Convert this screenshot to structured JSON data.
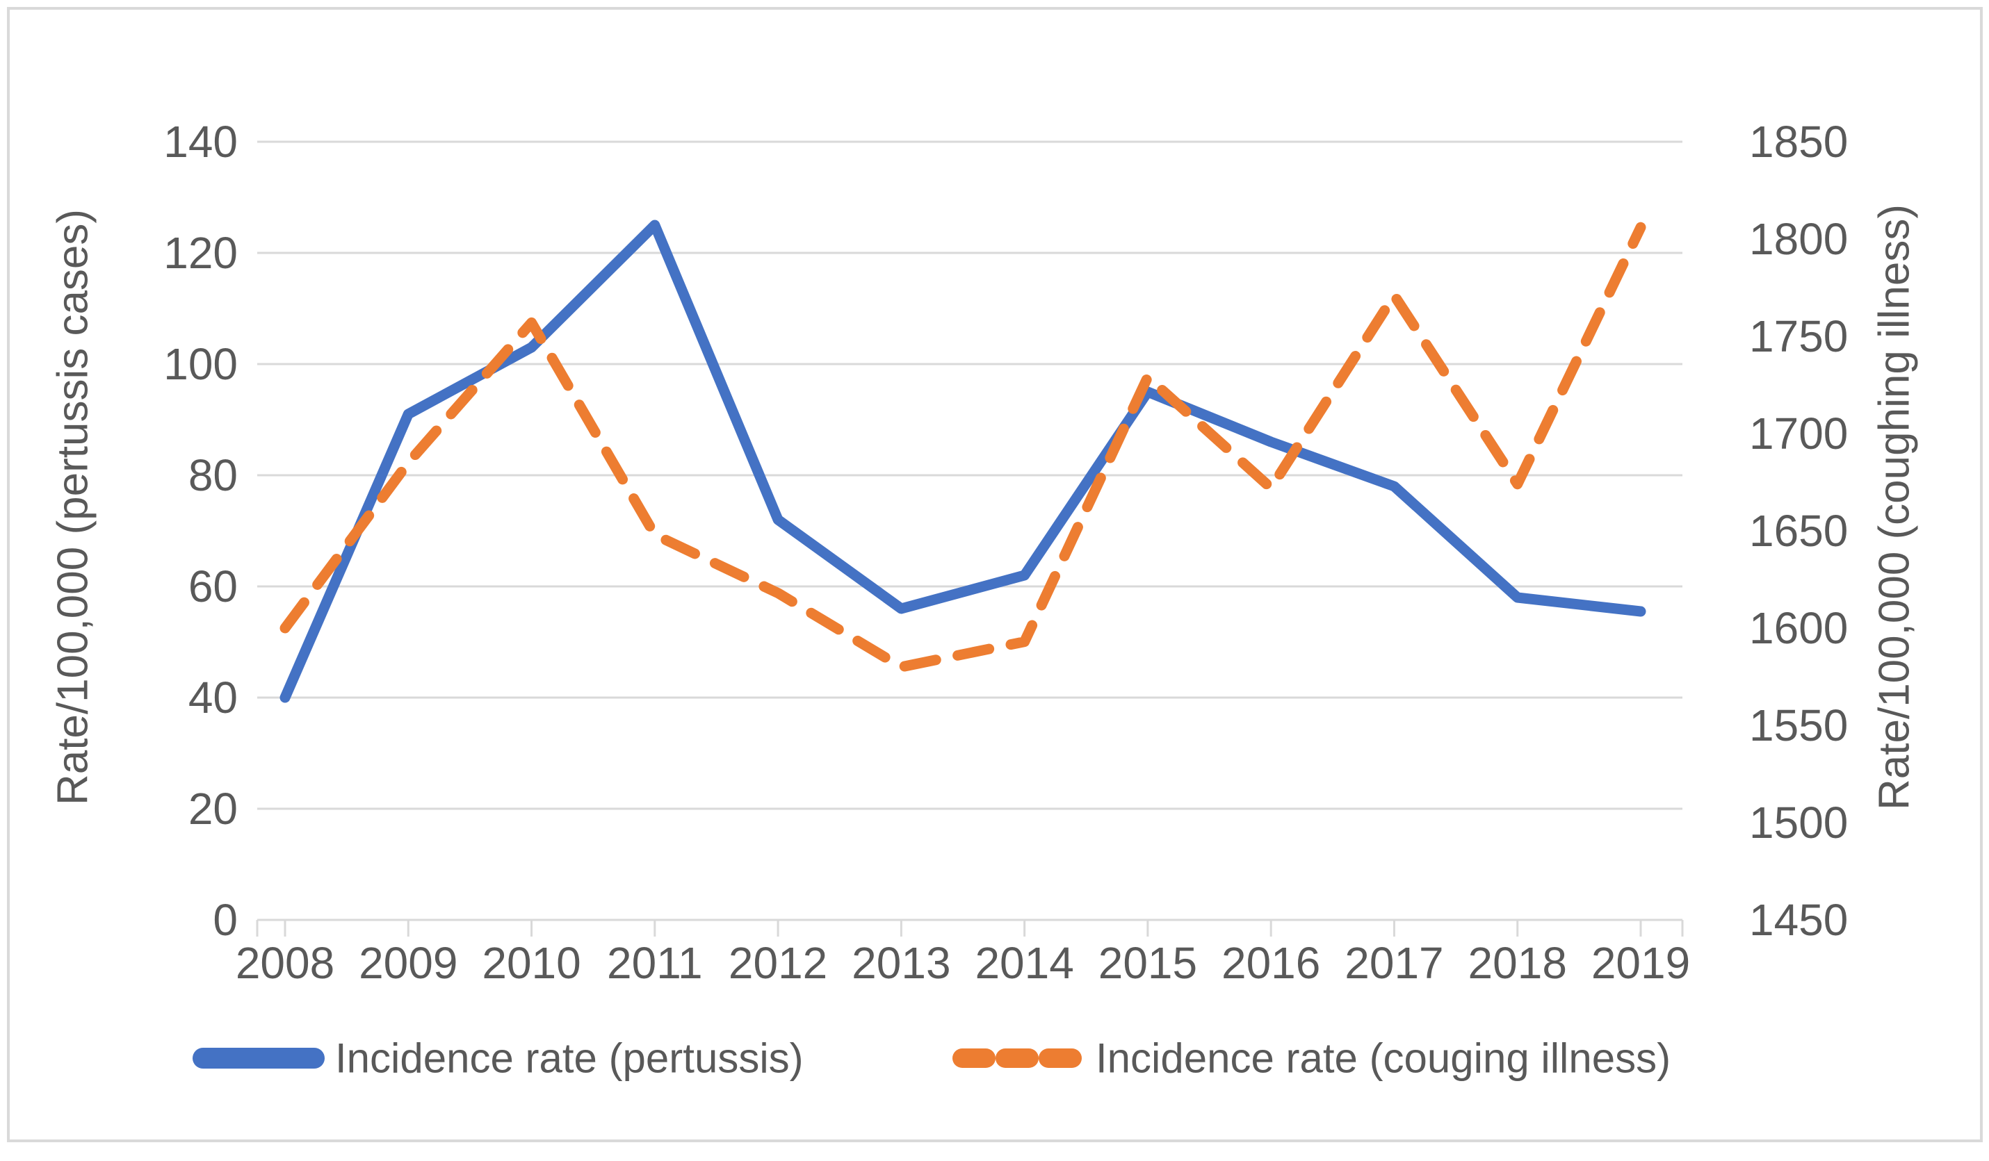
{
  "chart": {
    "left_axis": {
      "title": "Rate/100,000 (pertussis cases)",
      "ticks": [
        0,
        20,
        40,
        60,
        80,
        100,
        120,
        140
      ]
    },
    "right_axis": {
      "title": "Rate/100,000 (coughing illness)",
      "ticks": [
        1450,
        1500,
        1550,
        1600,
        1650,
        1700,
        1750,
        1800,
        1850
      ]
    },
    "x_axis": {
      "categories": [
        "2008",
        "2009",
        "2010",
        "2011",
        "2012",
        "2013",
        "2014",
        "2015",
        "2016",
        "2017",
        "2018",
        "2019"
      ]
    },
    "legend": {
      "position": "bottom",
      "items": [
        {
          "label": "Incidence rate (pertussis)",
          "color": "#4472C4",
          "style": "solid"
        },
        {
          "label": "Incidence rate (couging illness)",
          "color": "#ED7D31",
          "style": "dashed"
        }
      ]
    },
    "colors": {
      "pertussis_line": "#4472C4",
      "coughing_line": "#ED7D31",
      "gridline": "#D9D9D9",
      "border": "#D9D9D9",
      "text": "#595959"
    }
  },
  "chart_data": {
    "type": "line",
    "x": [
      "2008",
      "2009",
      "2010",
      "2011",
      "2012",
      "2013",
      "2014",
      "2015",
      "2016",
      "2017",
      "2018",
      "2019"
    ],
    "series": [
      {
        "name": "Incidence rate (pertussis)",
        "axis": "left",
        "color": "#4472C4",
        "style": "solid",
        "values": [
          40,
          91,
          103,
          125,
          72,
          56,
          62,
          95,
          86,
          78,
          58,
          55.5
        ]
      },
      {
        "name": "Incidence rate (couging illness)",
        "axis": "right",
        "color": "#ED7D31",
        "style": "dashed",
        "values": [
          1600,
          1685,
          1757,
          1648,
          1618,
          1580,
          1593,
          1729,
          1672,
          1771,
          1674,
          1806
        ]
      }
    ],
    "title": "",
    "xlabel": "",
    "ylabel_left": "Rate/100,000 (pertussis cases)",
    "ylabel_right": "Rate/100,000 (coughing illness)",
    "ylim_left": [
      0,
      140
    ],
    "ylim_right": [
      1450,
      1850
    ],
    "grid": true,
    "legend_position": "bottom"
  }
}
